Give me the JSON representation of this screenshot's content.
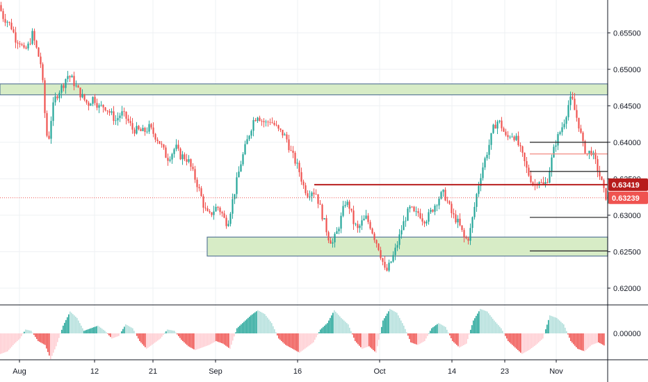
{
  "colors": {
    "up": "#26a69a",
    "down": "#ef5350",
    "hist_up_strong": "#26a69a",
    "hist_up_weak": "#b2dfdb",
    "hist_down_strong": "#ef5350",
    "hist_down_weak": "#ffcdd2",
    "zone_fill": "#d7ecc6",
    "zone_border": "#5b7a99",
    "resistance_line": "#b71c1c",
    "grid": "#eef0f3",
    "axis": "#131722",
    "level_black": "#333333",
    "level_red": "#f28b82"
  },
  "chart_data": {
    "type": "candlestick",
    "title": "",
    "xlabel": "",
    "ylabel": "",
    "ylim": [
      0.6178,
      0.6595
    ],
    "y_ticks": [
      "0.65500",
      "0.65000",
      "0.64500",
      "0.64000",
      "0.63500",
      "0.63000",
      "0.62500",
      "0.62000"
    ],
    "y_tick_values": [
      0.655,
      0.65,
      0.645,
      0.64,
      0.635,
      0.63,
      0.625,
      0.62
    ],
    "x_ticks": [
      "Aug",
      "12",
      "21",
      "Sep",
      "16",
      "Oct",
      "14",
      "23",
      "Nov"
    ],
    "x_tick_positions": [
      14,
      68,
      110,
      155,
      214,
      273,
      325,
      363,
      400
    ],
    "x_range": [
      0,
      437
    ],
    "price_path": [
      [
        0,
        0.6588
      ],
      [
        3,
        0.6572
      ],
      [
        6,
        0.6566
      ],
      [
        9,
        0.6558
      ],
      [
        12,
        0.6542
      ],
      [
        15,
        0.6538
      ],
      [
        18,
        0.6524
      ],
      [
        21,
        0.6532
      ],
      [
        24,
        0.6548
      ],
      [
        27,
        0.6528
      ],
      [
        30,
        0.6508
      ],
      [
        32,
        0.647
      ],
      [
        34,
        0.641
      ],
      [
        36,
        0.6408
      ],
      [
        38,
        0.644
      ],
      [
        40,
        0.6458
      ],
      [
        43,
        0.647
      ],
      [
        46,
        0.6478
      ],
      [
        49,
        0.6492
      ],
      [
        52,
        0.6488
      ],
      [
        56,
        0.6474
      ],
      [
        60,
        0.6462
      ],
      [
        64,
        0.6452
      ],
      [
        68,
        0.6462
      ],
      [
        72,
        0.6448
      ],
      [
        76,
        0.645
      ],
      [
        80,
        0.644
      ],
      [
        84,
        0.643
      ],
      [
        88,
        0.644
      ],
      [
        92,
        0.6432
      ],
      [
        96,
        0.6418
      ],
      [
        100,
        0.6416
      ],
      [
        104,
        0.6414
      ],
      [
        108,
        0.642
      ],
      [
        112,
        0.641
      ],
      [
        115,
        0.6402
      ],
      [
        118,
        0.639
      ],
      [
        121,
        0.6378
      ],
      [
        124,
        0.6384
      ],
      [
        127,
        0.6394
      ],
      [
        130,
        0.6382
      ],
      [
        133,
        0.638
      ],
      [
        136,
        0.6376
      ],
      [
        139,
        0.636
      ],
      [
        142,
        0.6346
      ],
      [
        145,
        0.6328
      ],
      [
        148,
        0.6308
      ],
      [
        151,
        0.6298
      ],
      [
        154,
        0.6306
      ],
      [
        157,
        0.6312
      ],
      [
        160,
        0.6304
      ],
      [
        163,
        0.629
      ],
      [
        165,
        0.6294
      ],
      [
        168,
        0.632
      ],
      [
        171,
        0.6346
      ],
      [
        174,
        0.6372
      ],
      [
        177,
        0.6392
      ],
      [
        180,
        0.6412
      ],
      [
        183,
        0.643
      ],
      [
        186,
        0.6438
      ],
      [
        189,
        0.643
      ],
      [
        192,
        0.6426
      ],
      [
        195,
        0.643
      ],
      [
        198,
        0.6424
      ],
      [
        201,
        0.6416
      ],
      [
        204,
        0.6412
      ],
      [
        207,
        0.6404
      ],
      [
        210,
        0.6386
      ],
      [
        213,
        0.6374
      ],
      [
        216,
        0.636
      ],
      [
        219,
        0.634
      ],
      [
        222,
        0.633
      ],
      [
        225,
        0.6334
      ],
      [
        228,
        0.633
      ],
      [
        231,
        0.631
      ],
      [
        234,
        0.629
      ],
      [
        237,
        0.627
      ],
      [
        240,
        0.6262
      ],
      [
        243,
        0.6276
      ],
      [
        246,
        0.6296
      ],
      [
        249,
        0.6318
      ],
      [
        252,
        0.6312
      ],
      [
        255,
        0.629
      ],
      [
        258,
        0.628
      ],
      [
        261,
        0.629
      ],
      [
        264,
        0.6296
      ],
      [
        267,
        0.6286
      ],
      [
        270,
        0.627
      ],
      [
        273,
        0.6256
      ],
      [
        276,
        0.6236
      ],
      [
        278,
        0.622
      ],
      [
        281,
        0.6232
      ],
      [
        284,
        0.6246
      ],
      [
        287,
        0.6264
      ],
      [
        290,
        0.6284
      ],
      [
        293,
        0.63
      ],
      [
        296,
        0.631
      ],
      [
        299,
        0.63
      ],
      [
        302,
        0.6304
      ],
      [
        305,
        0.6294
      ],
      [
        308,
        0.6296
      ],
      [
        311,
        0.6306
      ],
      [
        314,
        0.6316
      ],
      [
        317,
        0.6326
      ],
      [
        320,
        0.633
      ],
      [
        323,
        0.6316
      ],
      [
        326,
        0.63
      ],
      [
        329,
        0.6294
      ],
      [
        332,
        0.6282
      ],
      [
        335,
        0.6266
      ],
      [
        338,
        0.627
      ],
      [
        341,
        0.63
      ],
      [
        344,
        0.6334
      ],
      [
        347,
        0.636
      ],
      [
        350,
        0.638
      ],
      [
        353,
        0.64
      ],
      [
        356,
        0.6422
      ],
      [
        359,
        0.643
      ],
      [
        362,
        0.642
      ],
      [
        365,
        0.6404
      ],
      [
        368,
        0.6412
      ],
      [
        371,
        0.6408
      ],
      [
        374,
        0.6394
      ],
      [
        377,
        0.6378
      ],
      [
        380,
        0.636
      ],
      [
        383,
        0.6348
      ],
      [
        385,
        0.634
      ],
      [
        388,
        0.635
      ],
      [
        391,
        0.634
      ],
      [
        394,
        0.6346
      ],
      [
        397,
        0.6372
      ],
      [
        400,
        0.6398
      ],
      [
        403,
        0.6412
      ],
      [
        406,
        0.6426
      ],
      [
        408,
        0.644
      ],
      [
        410,
        0.6455
      ],
      [
        412,
        0.646
      ],
      [
        414,
        0.6444
      ],
      [
        417,
        0.6424
      ],
      [
        420,
        0.6396
      ],
      [
        423,
        0.6384
      ],
      [
        426,
        0.6388
      ],
      [
        429,
        0.6372
      ],
      [
        431,
        0.636
      ],
      [
        433,
        0.6348
      ],
      [
        435,
        0.6332
      ],
      [
        437,
        0.6324
      ]
    ],
    "histogram": [
      [
        0,
        -0.8
      ],
      [
        5,
        -0.7
      ],
      [
        10,
        -0.4
      ],
      [
        14,
        -0.2
      ],
      [
        18,
        0.15
      ],
      [
        22,
        0.1
      ],
      [
        27,
        -0.3
      ],
      [
        32,
        -0.45
      ],
      [
        36,
        -1.0
      ],
      [
        40,
        -0.5
      ],
      [
        45,
        0.3
      ],
      [
        50,
        0.85
      ],
      [
        55,
        0.6
      ],
      [
        60,
        0.1
      ],
      [
        65,
        0.2
      ],
      [
        70,
        0.3
      ],
      [
        75,
        0.1
      ],
      [
        80,
        -0.2
      ],
      [
        85,
        -0.1
      ],
      [
        90,
        0.35
      ],
      [
        95,
        0.2
      ],
      [
        100,
        -0.3
      ],
      [
        105,
        -0.6
      ],
      [
        110,
        -0.4
      ],
      [
        115,
        -0.2
      ],
      [
        120,
        0.15
      ],
      [
        125,
        0.1
      ],
      [
        130,
        -0.25
      ],
      [
        135,
        -0.5
      ],
      [
        140,
        -0.65
      ],
      [
        145,
        -0.55
      ],
      [
        150,
        -0.45
      ],
      [
        155,
        -0.3
      ],
      [
        160,
        -0.4
      ],
      [
        165,
        -0.6
      ],
      [
        170,
        0.2
      ],
      [
        175,
        0.45
      ],
      [
        180,
        0.7
      ],
      [
        185,
        0.9
      ],
      [
        190,
        0.75
      ],
      [
        195,
        0.4
      ],
      [
        200,
        -0.2
      ],
      [
        205,
        -0.45
      ],
      [
        210,
        -0.6
      ],
      [
        215,
        -0.75
      ],
      [
        220,
        -0.55
      ],
      [
        225,
        -0.35
      ],
      [
        230,
        0.15
      ],
      [
        235,
        0.4
      ],
      [
        240,
        0.9
      ],
      [
        245,
        0.6
      ],
      [
        250,
        0.35
      ],
      [
        255,
        -0.3
      ],
      [
        260,
        -0.6
      ],
      [
        265,
        -0.5
      ],
      [
        270,
        -0.75
      ],
      [
        275,
        0.5
      ],
      [
        280,
        0.95
      ],
      [
        285,
        0.8
      ],
      [
        290,
        0.3
      ],
      [
        295,
        -0.35
      ],
      [
        300,
        -0.45
      ],
      [
        305,
        -0.3
      ],
      [
        310,
        0.2
      ],
      [
        315,
        0.4
      ],
      [
        320,
        0.25
      ],
      [
        325,
        -0.3
      ],
      [
        330,
        -0.55
      ],
      [
        335,
        -0.4
      ],
      [
        340,
        0.5
      ],
      [
        345,
        0.95
      ],
      [
        350,
        0.85
      ],
      [
        355,
        0.5
      ],
      [
        360,
        0.2
      ],
      [
        365,
        -0.3
      ],
      [
        370,
        -0.55
      ],
      [
        375,
        -0.8
      ],
      [
        380,
        -0.65
      ],
      [
        385,
        -0.45
      ],
      [
        390,
        -0.2
      ],
      [
        395,
        0.7
      ],
      [
        400,
        0.6
      ],
      [
        405,
        0.35
      ],
      [
        410,
        -0.3
      ],
      [
        415,
        -0.6
      ],
      [
        420,
        -0.7
      ],
      [
        425,
        -0.45
      ],
      [
        430,
        -0.35
      ],
      [
        435,
        -0.5
      ]
    ],
    "histogram_tick": "0.00000",
    "zones": [
      {
        "x_start": 0,
        "x_end": 437,
        "y_top": 0.648,
        "y_bottom": 0.6465
      },
      {
        "x_start": 149,
        "x_end": 437,
        "y_top": 0.627,
        "y_bottom": 0.6244
      }
    ],
    "levels_black": [
      {
        "x_start": 381,
        "x_end": 437,
        "y": 0.64
      },
      {
        "x_start": 381,
        "x_end": 437,
        "y": 0.636
      },
      {
        "x_start": 381,
        "x_end": 437,
        "y": 0.6297
      },
      {
        "x_start": 381,
        "x_end": 437,
        "y": 0.6251
      }
    ],
    "levels_red": [
      {
        "x_start": 381,
        "x_end": 437,
        "y": 0.6384
      }
    ],
    "resistance": {
      "x_start": 226,
      "x_end": 437,
      "y": 0.63419
    },
    "current_price_line": {
      "y": 0.63239
    },
    "price_tags": [
      {
        "label": "0.63419",
        "y": 0.63419,
        "color": "#b71c1c"
      },
      {
        "label": "0.63239",
        "y": 0.63239,
        "color": "#ef5350"
      }
    ]
  }
}
